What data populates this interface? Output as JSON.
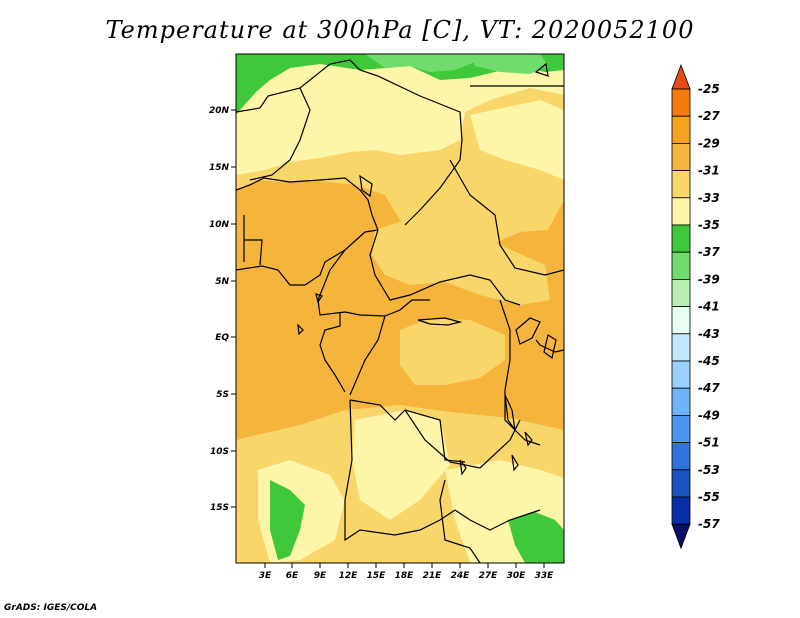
{
  "title": "Temperature at 300hPa [C], VT: 2020052100",
  "credit": "GrADS: IGES/COLA",
  "map": {
    "lat_labels": [
      "20N",
      "15N",
      "10N",
      "5N",
      "EQ",
      "5S",
      "10S",
      "15S"
    ],
    "lon_labels": [
      "3E",
      "6E",
      "9E",
      "12E",
      "15E",
      "18E",
      "21E",
      "24E",
      "27E",
      "30E",
      "33E"
    ]
  },
  "colorbar": {
    "labels": [
      "-25",
      "-27",
      "-29",
      "-31",
      "-33",
      "-35",
      "-37",
      "-39",
      "-41",
      "-43",
      "-45",
      "-47",
      "-49",
      "-51",
      "-53",
      "-55",
      "-57"
    ],
    "colors": [
      "#e84a14",
      "#f47b0c",
      "#f5a21c",
      "#f5b43c",
      "#f8d66a",
      "#fdf5a8",
      "#3fc83a",
      "#70dc6e",
      "#b7f0b0",
      "#e6fff0",
      "#c4e6ff",
      "#9ad0ff",
      "#6eb4f8",
      "#4a96ee",
      "#2e74dc",
      "#1a52c0",
      "#0a2ea8",
      "#0a0e6a"
    ]
  },
  "colors": {
    "green": "#3fc83a",
    "light_green": "#70dc6e",
    "pale_green": "#b7f0b0",
    "cream": "#fdf5a8",
    "light_yellow": "#f8d66a",
    "orange": "#f5b43c"
  }
}
